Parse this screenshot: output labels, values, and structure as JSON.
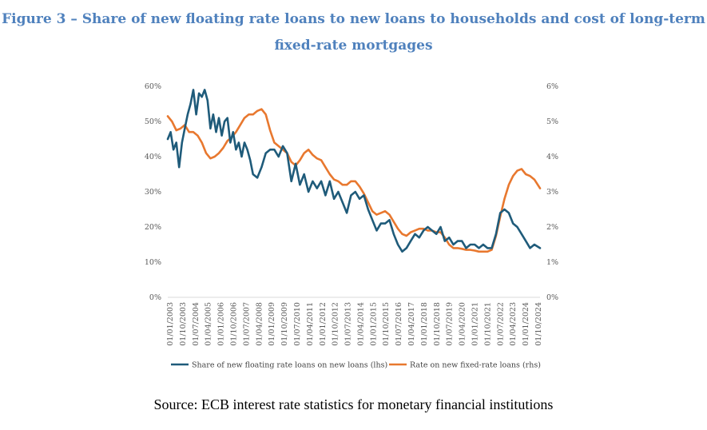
{
  "title_line1": "Figure 3 – Share of new floating rate loans to new loans to households and cost of long-term",
  "title_line2": "fixed-rate mortgages",
  "source": "Source: ECB interest rate statistics for monetary financial institutions",
  "colors": {
    "title": "#4f81bd",
    "series_share": "#1f5b7a",
    "series_rate": "#e8782f"
  },
  "chart_data": {
    "type": "line",
    "x_start": "2003-01",
    "x_end": "2024-11",
    "x_tick_labels": [
      "01/01/2003",
      "01/10/2003",
      "01/07/2004",
      "01/04/2005",
      "01/01/2006",
      "01/10/2006",
      "01/07/2007",
      "01/04/2008",
      "01/01/2009",
      "01/10/2009",
      "01/07/2010",
      "01/04/2011",
      "01/01/2012",
      "01/10/2012",
      "01/07/2013",
      "01/04/2014",
      "01/01/2015",
      "01/10/2015",
      "01/07/2016",
      "01/04/2017",
      "01/01/2018",
      "01/10/2018",
      "01/07/2019",
      "01/04/2020",
      "01/01/2021",
      "01/10/2021",
      "01/07/2022",
      "01/04/2023",
      "01/01/2024",
      "01/10/2024"
    ],
    "y_left": {
      "ticks": [
        "0%",
        "10%",
        "20%",
        "30%",
        "40%",
        "50%",
        "60%"
      ],
      "range": [
        0,
        60
      ]
    },
    "y_right": {
      "ticks": [
        "0%",
        "1%",
        "2%",
        "3%",
        "4%",
        "5%",
        "6%"
      ],
      "range": [
        0,
        6
      ]
    },
    "grid": false,
    "legend_position": "bottom",
    "series": [
      {
        "name": "Share of new floating rate loans on new loans (lhs)",
        "axis": "left",
        "points": [
          [
            "2003-01",
            45
          ],
          [
            "2003-03",
            47
          ],
          [
            "2003-05",
            42
          ],
          [
            "2003-07",
            44
          ],
          [
            "2003-09",
            37
          ],
          [
            "2003-11",
            44
          ],
          [
            "2004-01",
            48
          ],
          [
            "2004-03",
            52
          ],
          [
            "2004-05",
            55
          ],
          [
            "2004-07",
            59
          ],
          [
            "2004-09",
            52
          ],
          [
            "2004-11",
            58
          ],
          [
            "2005-01",
            57
          ],
          [
            "2005-03",
            59
          ],
          [
            "2005-05",
            56
          ],
          [
            "2005-07",
            48
          ],
          [
            "2005-09",
            52
          ],
          [
            "2005-11",
            47
          ],
          [
            "2006-01",
            51
          ],
          [
            "2006-03",
            46
          ],
          [
            "2006-05",
            50
          ],
          [
            "2006-07",
            51
          ],
          [
            "2006-09",
            44
          ],
          [
            "2006-11",
            47
          ],
          [
            "2007-01",
            42
          ],
          [
            "2007-03",
            44
          ],
          [
            "2007-05",
            40
          ],
          [
            "2007-07",
            44
          ],
          [
            "2007-09",
            42
          ],
          [
            "2007-11",
            39
          ],
          [
            "2008-01",
            35
          ],
          [
            "2008-04",
            34
          ],
          [
            "2008-07",
            37
          ],
          [
            "2008-10",
            41
          ],
          [
            "2009-01",
            42
          ],
          [
            "2009-04",
            42
          ],
          [
            "2009-07",
            40
          ],
          [
            "2009-10",
            43
          ],
          [
            "2010-01",
            41
          ],
          [
            "2010-04",
            33
          ],
          [
            "2010-07",
            38
          ],
          [
            "2010-10",
            32
          ],
          [
            "2011-01",
            35
          ],
          [
            "2011-04",
            30
          ],
          [
            "2011-07",
            33
          ],
          [
            "2011-10",
            31
          ],
          [
            "2012-01",
            33
          ],
          [
            "2012-04",
            29
          ],
          [
            "2012-07",
            33
          ],
          [
            "2012-10",
            28
          ],
          [
            "2013-01",
            30
          ],
          [
            "2013-04",
            27
          ],
          [
            "2013-07",
            24
          ],
          [
            "2013-10",
            29
          ],
          [
            "2014-01",
            30
          ],
          [
            "2014-04",
            28
          ],
          [
            "2014-07",
            29
          ],
          [
            "2014-10",
            25
          ],
          [
            "2015-01",
            22
          ],
          [
            "2015-04",
            19
          ],
          [
            "2015-07",
            21
          ],
          [
            "2015-10",
            21
          ],
          [
            "2016-01",
            22
          ],
          [
            "2016-04",
            18
          ],
          [
            "2016-07",
            15
          ],
          [
            "2016-10",
            13
          ],
          [
            "2017-01",
            14
          ],
          [
            "2017-04",
            16
          ],
          [
            "2017-07",
            18
          ],
          [
            "2017-10",
            17
          ],
          [
            "2018-01",
            19
          ],
          [
            "2018-04",
            20
          ],
          [
            "2018-07",
            19
          ],
          [
            "2018-10",
            18
          ],
          [
            "2019-01",
            20
          ],
          [
            "2019-04",
            16
          ],
          [
            "2019-07",
            17
          ],
          [
            "2019-10",
            15
          ],
          [
            "2020-01",
            16
          ],
          [
            "2020-04",
            16
          ],
          [
            "2020-07",
            14
          ],
          [
            "2020-10",
            15
          ],
          [
            "2021-01",
            15
          ],
          [
            "2021-04",
            14
          ],
          [
            "2021-07",
            15
          ],
          [
            "2021-10",
            14
          ],
          [
            "2022-01",
            14
          ],
          [
            "2022-04",
            18
          ],
          [
            "2022-07",
            24
          ],
          [
            "2022-10",
            25
          ],
          [
            "2023-01",
            24
          ],
          [
            "2023-04",
            21
          ],
          [
            "2023-07",
            20
          ],
          [
            "2023-10",
            18
          ],
          [
            "2024-01",
            16
          ],
          [
            "2024-04",
            14
          ],
          [
            "2024-07",
            15
          ],
          [
            "2024-11",
            14
          ]
        ]
      },
      {
        "name": "Rate on new fixed-rate loans (rhs)",
        "axis": "right",
        "points": [
          [
            "2003-01",
            5.15
          ],
          [
            "2003-04",
            5.0
          ],
          [
            "2003-07",
            4.75
          ],
          [
            "2003-10",
            4.8
          ],
          [
            "2004-01",
            4.9
          ],
          [
            "2004-04",
            4.7
          ],
          [
            "2004-07",
            4.7
          ],
          [
            "2004-10",
            4.6
          ],
          [
            "2005-01",
            4.4
          ],
          [
            "2005-04",
            4.1
          ],
          [
            "2005-07",
            3.95
          ],
          [
            "2005-10",
            4.0
          ],
          [
            "2006-01",
            4.1
          ],
          [
            "2006-04",
            4.25
          ],
          [
            "2006-07",
            4.45
          ],
          [
            "2006-10",
            4.55
          ],
          [
            "2007-01",
            4.7
          ],
          [
            "2007-04",
            4.9
          ],
          [
            "2007-07",
            5.1
          ],
          [
            "2007-10",
            5.2
          ],
          [
            "2008-01",
            5.2
          ],
          [
            "2008-04",
            5.3
          ],
          [
            "2008-07",
            5.35
          ],
          [
            "2008-10",
            5.2
          ],
          [
            "2009-01",
            4.75
          ],
          [
            "2009-04",
            4.4
          ],
          [
            "2009-07",
            4.3
          ],
          [
            "2009-10",
            4.2
          ],
          [
            "2010-01",
            4.1
          ],
          [
            "2010-04",
            3.85
          ],
          [
            "2010-07",
            3.75
          ],
          [
            "2010-10",
            3.9
          ],
          [
            "2011-01",
            4.1
          ],
          [
            "2011-04",
            4.2
          ],
          [
            "2011-07",
            4.05
          ],
          [
            "2011-10",
            3.95
          ],
          [
            "2012-01",
            3.9
          ],
          [
            "2012-04",
            3.7
          ],
          [
            "2012-07",
            3.5
          ],
          [
            "2012-10",
            3.35
          ],
          [
            "2013-01",
            3.3
          ],
          [
            "2013-04",
            3.2
          ],
          [
            "2013-07",
            3.2
          ],
          [
            "2013-10",
            3.3
          ],
          [
            "2014-01",
            3.3
          ],
          [
            "2014-04",
            3.15
          ],
          [
            "2014-07",
            2.95
          ],
          [
            "2014-10",
            2.7
          ],
          [
            "2015-01",
            2.45
          ],
          [
            "2015-04",
            2.35
          ],
          [
            "2015-07",
            2.4
          ],
          [
            "2015-10",
            2.45
          ],
          [
            "2016-01",
            2.35
          ],
          [
            "2016-04",
            2.15
          ],
          [
            "2016-07",
            1.95
          ],
          [
            "2016-10",
            1.8
          ],
          [
            "2017-01",
            1.75
          ],
          [
            "2017-04",
            1.85
          ],
          [
            "2017-07",
            1.9
          ],
          [
            "2017-10",
            1.95
          ],
          [
            "2018-01",
            1.95
          ],
          [
            "2018-04",
            1.9
          ],
          [
            "2018-07",
            1.9
          ],
          [
            "2018-10",
            1.85
          ],
          [
            "2019-01",
            1.85
          ],
          [
            "2019-04",
            1.7
          ],
          [
            "2019-07",
            1.5
          ],
          [
            "2019-10",
            1.4
          ],
          [
            "2020-01",
            1.4
          ],
          [
            "2020-04",
            1.38
          ],
          [
            "2020-07",
            1.35
          ],
          [
            "2020-10",
            1.35
          ],
          [
            "2021-01",
            1.33
          ],
          [
            "2021-04",
            1.3
          ],
          [
            "2021-07",
            1.3
          ],
          [
            "2021-10",
            1.3
          ],
          [
            "2022-01",
            1.35
          ],
          [
            "2022-04",
            1.75
          ],
          [
            "2022-07",
            2.3
          ],
          [
            "2022-10",
            2.8
          ],
          [
            "2023-01",
            3.2
          ],
          [
            "2023-04",
            3.45
          ],
          [
            "2023-07",
            3.6
          ],
          [
            "2023-10",
            3.65
          ],
          [
            "2024-01",
            3.5
          ],
          [
            "2024-04",
            3.45
          ],
          [
            "2024-07",
            3.35
          ],
          [
            "2024-11",
            3.1
          ]
        ]
      }
    ]
  }
}
